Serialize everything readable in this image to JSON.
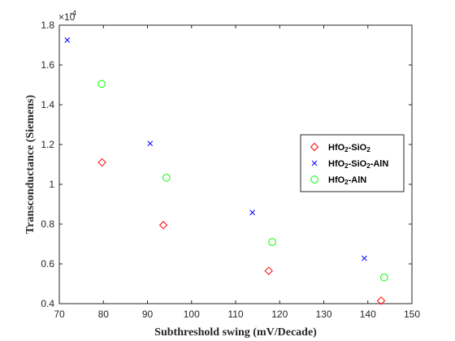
{
  "chart_data": {
    "type": "scatter",
    "xlabel": "Subthreshold swing (mV/Decade)",
    "ylabel": "Transconductance (Siemens)",
    "xlim": [
      70,
      150
    ],
    "ylim": [
      0.4,
      1.8
    ],
    "x_ticks": [
      "70",
      "80",
      "90",
      "100",
      "110",
      "120",
      "130",
      "140",
      "150"
    ],
    "y_ticks": [
      "0.4",
      "0.6",
      "0.8",
      "1",
      "1.2",
      "1.4",
      "1.6",
      "1.8"
    ],
    "y_exponent_base": "×10",
    "y_exponent_power": "-4",
    "grid": false,
    "legend_position": "right",
    "series": [
      {
        "name_main": "HfO",
        "name_sub1": "2",
        "name_mid": "-SiO",
        "name_sub2": "2",
        "name_tail": "",
        "marker": "diamond",
        "color": "#ff0000",
        "points": [
          [
            79.7,
            1.11
          ],
          [
            93.6,
            0.795
          ],
          [
            117.5,
            0.565
          ],
          [
            143.0,
            0.415
          ]
        ]
      },
      {
        "name_main": "HfO",
        "name_sub1": "2",
        "name_mid": "-SiO",
        "name_sub2": "2",
        "name_tail": "-AlN",
        "marker": "x",
        "color": "#0000ff",
        "points": [
          [
            71.8,
            1.725
          ],
          [
            90.6,
            1.205
          ],
          [
            113.8,
            0.858
          ],
          [
            139.2,
            0.628
          ]
        ]
      },
      {
        "name_main": "HfO",
        "name_sub1": "2",
        "name_mid": "-AlN",
        "name_sub2": "",
        "name_tail": "",
        "marker": "circle",
        "color": "#00ff00",
        "points": [
          [
            79.6,
            1.505
          ],
          [
            94.3,
            1.033
          ],
          [
            118.3,
            0.71
          ],
          [
            143.7,
            0.532
          ]
        ]
      }
    ]
  }
}
